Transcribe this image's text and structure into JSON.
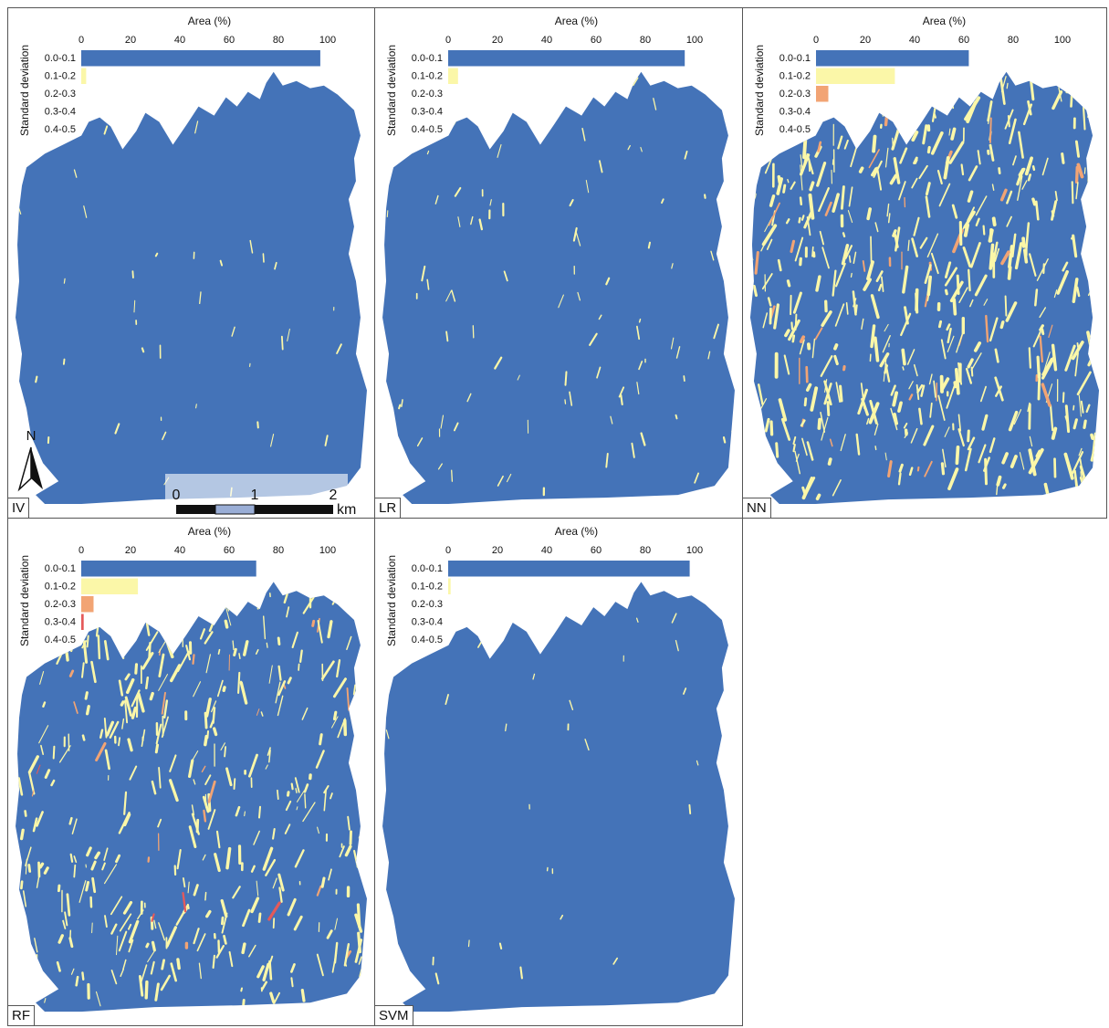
{
  "figure": {
    "colors": {
      "class_0": "#4473b8",
      "class_1": "#fbf7a8",
      "class_2": "#f2a474",
      "class_3": "#e55a5a",
      "class_4": "#b22222",
      "border": "#555555"
    },
    "legend_axis_title": "Area (%)",
    "legend_y_title": "Standard deviation",
    "classes": [
      "0.0-0.1",
      "0.1-0.2",
      "0.2-0.3",
      "0.3-0.4",
      "0.4-0.5"
    ],
    "axis_ticks": [
      "0",
      "20",
      "40",
      "60",
      "80",
      "100"
    ],
    "north_label": "N",
    "scale_ticks": [
      "0",
      "1",
      "2"
    ],
    "scale_unit": "km"
  },
  "panels": [
    {
      "id": "IV",
      "label": "IV",
      "area_percent": [
        97,
        2,
        0,
        0,
        0
      ],
      "speckle": 0.03
    },
    {
      "id": "LR",
      "label": "LR",
      "area_percent": [
        96,
        4,
        0,
        0,
        0
      ],
      "speckle": 0.07
    },
    {
      "id": "NN",
      "label": "NN",
      "area_percent": [
        62,
        32,
        5,
        0,
        0
      ],
      "speckle": 0.38
    },
    {
      "id": "RF",
      "label": "RF",
      "area_percent": [
        71,
        23,
        5,
        1,
        0
      ],
      "speckle": 0.3
    },
    {
      "id": "SVM",
      "label": "SVM",
      "area_percent": [
        98,
        1,
        0,
        0,
        0
      ],
      "speckle": 0.02
    }
  ]
}
